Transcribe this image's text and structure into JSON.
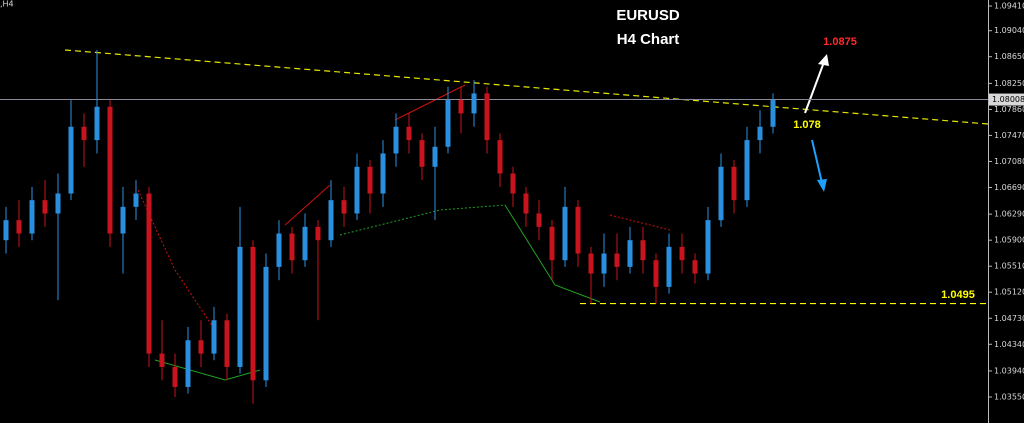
{
  "chart_data": {
    "type": "candlestick",
    "title": "EURUSD",
    "subtitle": "H4 Chart",
    "symbol_label": ",H4",
    "up_color": "#2b8fe0",
    "down_color": "#c8141e",
    "ylim": [
      1.0316,
      1.095
    ],
    "yticks": [
      {
        "value": 1.0941,
        "label": "1.09410"
      },
      {
        "value": 1.0904,
        "label": "1.09040"
      },
      {
        "value": 1.0865,
        "label": "1.08650"
      },
      {
        "value": 1.0825,
        "label": "1.08250"
      },
      {
        "value": 1.0786,
        "label": "1.07860"
      },
      {
        "value": 1.0747,
        "label": "1.07470"
      },
      {
        "value": 1.0708,
        "label": "1.07080"
      },
      {
        "value": 1.0669,
        "label": "1.06690"
      },
      {
        "value": 1.0629,
        "label": "1.06290"
      },
      {
        "value": 1.059,
        "label": "1.05900"
      },
      {
        "value": 1.0551,
        "label": "1.05510"
      },
      {
        "value": 1.0512,
        "label": "1.05120"
      },
      {
        "value": 1.0473,
        "label": "1.04730"
      },
      {
        "value": 1.0434,
        "label": "1.04340"
      },
      {
        "value": 1.0394,
        "label": "1.03940"
      },
      {
        "value": 1.0355,
        "label": "1.03550"
      }
    ],
    "current_price": {
      "value": 1.08008,
      "label": "1.08008"
    },
    "annotations": [
      {
        "value": 1.0875,
        "color": "#ff2a2a"
      },
      {
        "value": 1.078,
        "color": "#ffff00"
      },
      {
        "value": 1.0495,
        "color": "#ffff00",
        "level": true
      }
    ],
    "open": [
      1.059,
      1.062,
      1.06,
      1.065,
      1.063,
      1.066,
      1.076,
      1.074,
      1.079,
      1.06,
      1.064,
      1.066,
      1.042,
      1.04,
      1.037,
      1.044,
      1.042,
      1.047,
      1.04,
      1.058,
      1.038,
      1.055,
      1.06,
      1.056,
      1.061,
      1.059,
      1.065,
      1.063,
      1.07,
      1.066,
      1.072,
      1.076,
      1.074,
      1.07,
      1.073,
      1.08,
      1.078,
      1.081,
      1.074,
      1.069,
      1.066,
      1.063,
      1.061,
      1.056,
      1.064,
      1.057,
      1.054,
      1.057,
      1.055,
      1.059,
      1.056,
      1.052,
      1.058,
      1.056,
      1.054,
      1.062,
      1.07,
      1.065,
      1.074,
      1.076
    ],
    "high": [
      1.064,
      1.065,
      1.067,
      1.068,
      1.069,
      1.08,
      1.078,
      1.0875,
      1.08,
      1.067,
      1.068,
      1.067,
      1.047,
      1.042,
      1.046,
      1.047,
      1.049,
      1.048,
      1.064,
      1.059,
      1.057,
      1.062,
      1.061,
      1.063,
      1.062,
      1.068,
      1.067,
      1.072,
      1.071,
      1.074,
      1.078,
      1.078,
      1.075,
      1.076,
      1.082,
      1.082,
      1.083,
      1.082,
      1.075,
      1.07,
      1.067,
      1.065,
      1.062,
      1.067,
      1.065,
      1.058,
      1.06,
      1.06,
      1.061,
      1.061,
      1.057,
      1.06,
      1.06,
      1.057,
      1.064,
      1.072,
      1.071,
      1.076,
      1.0785,
      1.081
    ],
    "low": [
      1.057,
      1.058,
      1.059,
      1.061,
      1.05,
      1.065,
      1.07,
      1.072,
      1.058,
      1.054,
      1.062,
      1.04,
      1.038,
      1.0355,
      1.036,
      1.04,
      1.041,
      1.038,
      1.039,
      1.0345,
      1.037,
      1.053,
      1.054,
      1.055,
      1.047,
      1.058,
      1.061,
      1.062,
      1.063,
      1.064,
      1.07,
      1.072,
      1.068,
      1.062,
      1.072,
      1.075,
      1.076,
      1.072,
      1.067,
      1.064,
      1.061,
      1.059,
      1.053,
      1.055,
      1.055,
      1.0495,
      1.052,
      1.053,
      1.054,
      1.054,
      1.0495,
      1.051,
      1.054,
      1.0525,
      1.053,
      1.061,
      1.063,
      1.064,
      1.072,
      1.075
    ],
    "close": [
      1.062,
      1.06,
      1.065,
      1.063,
      1.066,
      1.076,
      1.074,
      1.079,
      1.06,
      1.064,
      1.066,
      1.042,
      1.04,
      1.037,
      1.044,
      1.042,
      1.047,
      1.04,
      1.058,
      1.038,
      1.055,
      1.06,
      1.056,
      1.061,
      1.059,
      1.065,
      1.063,
      1.07,
      1.066,
      1.072,
      1.076,
      1.074,
      1.07,
      1.073,
      1.08,
      1.078,
      1.081,
      1.074,
      1.069,
      1.066,
      1.063,
      1.061,
      1.056,
      1.064,
      1.057,
      1.054,
      1.057,
      1.055,
      1.059,
      1.056,
      1.052,
      1.058,
      1.056,
      1.054,
      1.062,
      1.07,
      1.065,
      1.074,
      1.076,
      1.08
    ]
  }
}
